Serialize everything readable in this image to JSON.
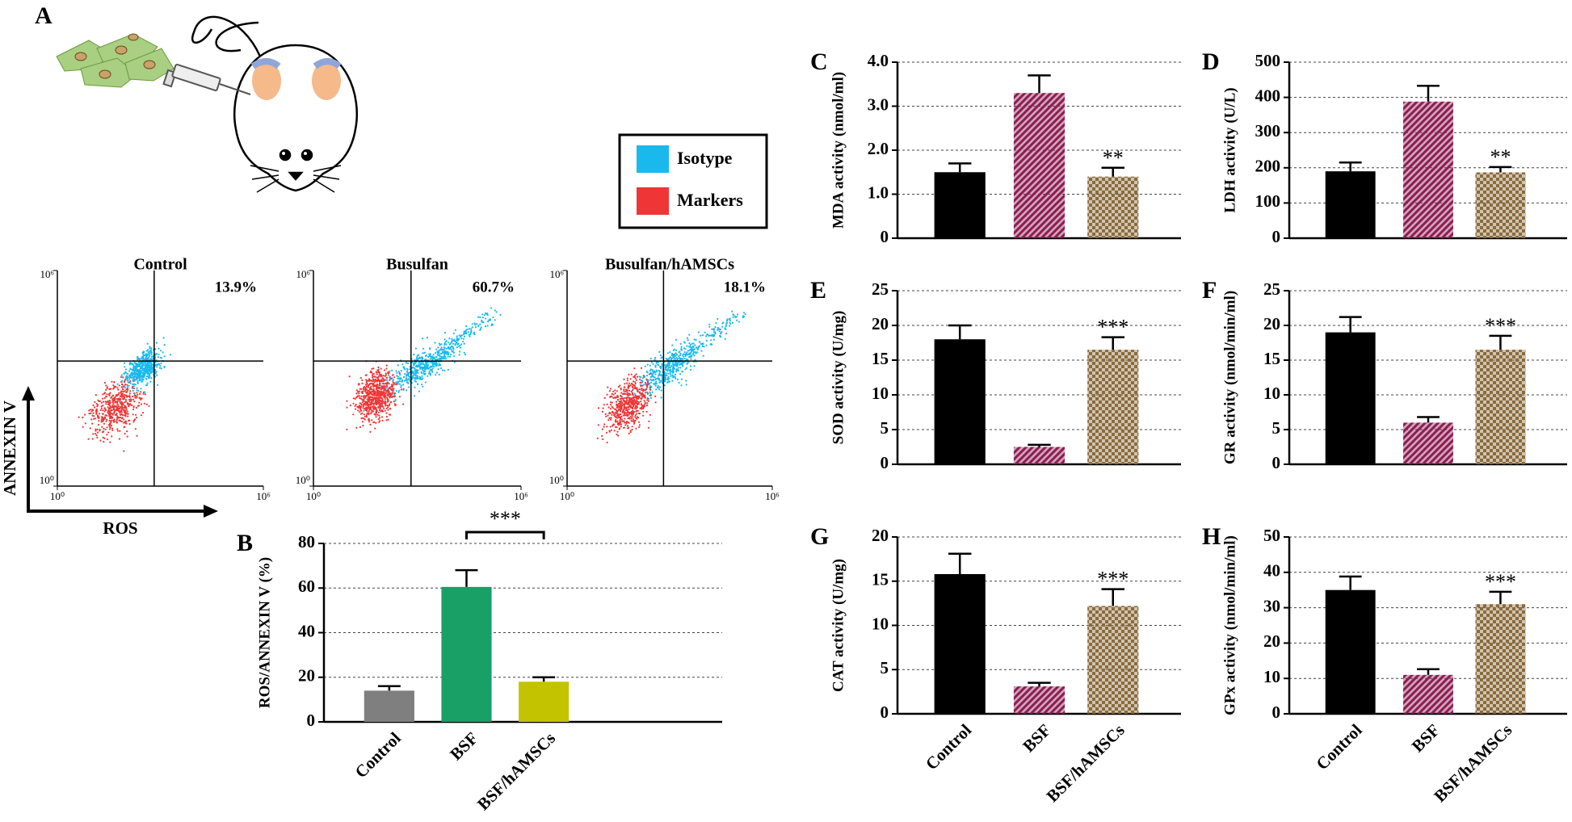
{
  "schematic": {
    "panel_label": "A",
    "x_label": "ROS",
    "y_label": "ANNEXIN V",
    "legend": [
      {
        "name": "Isotype",
        "color": "#19b9ee"
      },
      {
        "name": "Markers",
        "color": "#ef3535"
      }
    ]
  },
  "chart_data": [
    {
      "type": "flow",
      "title": "Control",
      "annotation": "13.9%",
      "log_scale": true,
      "xlim": [
        1,
        1000000
      ],
      "ylim": [
        1,
        1000000
      ],
      "xticks": [
        {
          "value": 1,
          "label": "10⁰"
        },
        {
          "value": 1000000,
          "label": "10⁶"
        }
      ],
      "yticks": [
        {
          "value": 1,
          "label": "10⁰"
        },
        {
          "value": 1000000,
          "label": "10⁶"
        }
      ]
    },
    {
      "type": "flow",
      "title": "Busulfan",
      "annotation": "60.7%",
      "log_scale": true,
      "xlim": [
        1,
        1000000
      ],
      "ylim": [
        1,
        1000000
      ],
      "xticks": [
        {
          "value": 1,
          "label": "10⁰"
        },
        {
          "value": 1000000,
          "label": "10⁶"
        }
      ],
      "yticks": [
        {
          "value": 1,
          "label": "10⁰"
        },
        {
          "value": 1000000,
          "label": "10⁶"
        }
      ]
    },
    {
      "type": "flow",
      "title": "Busulfan/hAMSCs",
      "annotation": "18.1%",
      "log_scale": true,
      "xlim": [
        1,
        1000000
      ],
      "ylim": [
        1,
        1000000
      ],
      "xticks": [
        {
          "value": 1,
          "label": "10⁰"
        },
        {
          "value": 1000000,
          "label": "10⁶"
        }
      ],
      "yticks": [
        {
          "value": 1,
          "label": "10⁰"
        },
        {
          "value": 1000000,
          "label": "10⁶"
        }
      ]
    },
    {
      "type": "bar",
      "panel_label": "B",
      "y_label": "ROS/ANNEXIN V (%)",
      "categories": [
        "Control",
        "BSF",
        "BSF/hAMSCs"
      ],
      "values": [
        14,
        60.5,
        18
      ],
      "errors": [
        2,
        7.5,
        2
      ],
      "colors": [
        "#7f7f7f",
        "#18a067",
        "#c3c300"
      ],
      "fill_styles": [
        "solid",
        "solid",
        "solid"
      ],
      "ylim": [
        0,
        80
      ],
      "yticks": [
        0,
        20,
        40,
        60,
        80
      ],
      "grid": true,
      "bracket_categories": [
        "BSF",
        "BSF/hAMSCs"
      ],
      "bracket_text": "***"
    },
    {
      "type": "bar",
      "panel_label": "C",
      "y_label": "MDA activity (nmol/ml)",
      "categories": [
        null,
        null,
        null
      ],
      "values": [
        1.5,
        3.3,
        1.4
      ],
      "errors": [
        0.2,
        0.4,
        0.2
      ],
      "colors": [
        "#000000",
        "#8c1d52",
        "#8a6b3c"
      ],
      "fill_styles": [
        "solid",
        "stripes",
        "checks"
      ],
      "ylim": [
        0,
        4
      ],
      "yticks": [
        0,
        {
          "value": 1,
          "label": "1.0"
        },
        {
          "value": 2,
          "label": "2.0"
        },
        {
          "value": 3,
          "label": "3.0"
        },
        {
          "value": 4,
          "label": "4.0"
        }
      ],
      "grid": true,
      "significance": [
        null,
        null,
        "**"
      ]
    },
    {
      "type": "bar",
      "panel_label": "D",
      "y_label": "LDH activity (U/L)",
      "categories": [
        null,
        null,
        null
      ],
      "values": [
        190,
        388,
        187
      ],
      "errors": [
        25,
        45,
        15
      ],
      "colors": [
        "#000000",
        "#8c1d52",
        "#8a6b3c"
      ],
      "fill_styles": [
        "solid",
        "stripes",
        "checks"
      ],
      "ylim": [
        0,
        500
      ],
      "yticks": [
        0,
        100,
        200,
        300,
        400,
        500
      ],
      "grid": true,
      "significance": [
        null,
        null,
        "**"
      ]
    },
    {
      "type": "bar",
      "panel_label": "E",
      "y_label": "SOD activity (U/mg)",
      "categories": [
        null,
        null,
        null
      ],
      "values": [
        18,
        2.5,
        16.5
      ],
      "errors": [
        2,
        0.3,
        1.8
      ],
      "colors": [
        "#000000",
        "#8c1d52",
        "#8a6b3c"
      ],
      "fill_styles": [
        "solid",
        "stripes",
        "checks"
      ],
      "ylim": [
        0,
        25
      ],
      "yticks": [
        0,
        5,
        10,
        15,
        20,
        25
      ],
      "grid": true,
      "significance": [
        null,
        null,
        "***"
      ]
    },
    {
      "type": "bar",
      "panel_label": "F",
      "y_label": "GR activity (nmol/min/ml)",
      "categories": [
        null,
        null,
        null
      ],
      "values": [
        19,
        6,
        16.5
      ],
      "errors": [
        2.2,
        0.8,
        2
      ],
      "colors": [
        "#000000",
        "#8c1d52",
        "#8a6b3c"
      ],
      "fill_styles": [
        "solid",
        "stripes",
        "checks"
      ],
      "ylim": [
        0,
        25
      ],
      "yticks": [
        0,
        5,
        10,
        15,
        20,
        25
      ],
      "grid": true,
      "significance": [
        null,
        null,
        "***"
      ]
    },
    {
      "type": "bar",
      "panel_label": "G",
      "y_label": "CAT activity (U/mg)",
      "categories": [
        "Control",
        "BSF",
        "BSF/hAMSCs"
      ],
      "values": [
        15.8,
        3.1,
        12.2
      ],
      "errors": [
        2.3,
        0.4,
        1.9
      ],
      "colors": [
        "#000000",
        "#8c1d52",
        "#8a6b3c"
      ],
      "fill_styles": [
        "solid",
        "stripes",
        "checks"
      ],
      "ylim": [
        0,
        20
      ],
      "yticks": [
        0,
        5,
        10,
        15,
        20
      ],
      "grid": true,
      "significance": [
        null,
        null,
        "***"
      ]
    },
    {
      "type": "bar",
      "panel_label": "H",
      "y_label": "GPx activity (nmol/min/ml)",
      "categories": [
        "Control",
        "BSF",
        "BSF/hAMSCs"
      ],
      "values": [
        35,
        11,
        31
      ],
      "errors": [
        3.8,
        1.6,
        3.5
      ],
      "colors": [
        "#000000",
        "#8c1d52",
        "#8a6b3c"
      ],
      "fill_styles": [
        "solid",
        "stripes",
        "checks"
      ],
      "ylim": [
        0,
        50
      ],
      "yticks": [
        0,
        10,
        20,
        30,
        40,
        50
      ],
      "grid": true,
      "significance": [
        null,
        null,
        "***"
      ]
    }
  ]
}
